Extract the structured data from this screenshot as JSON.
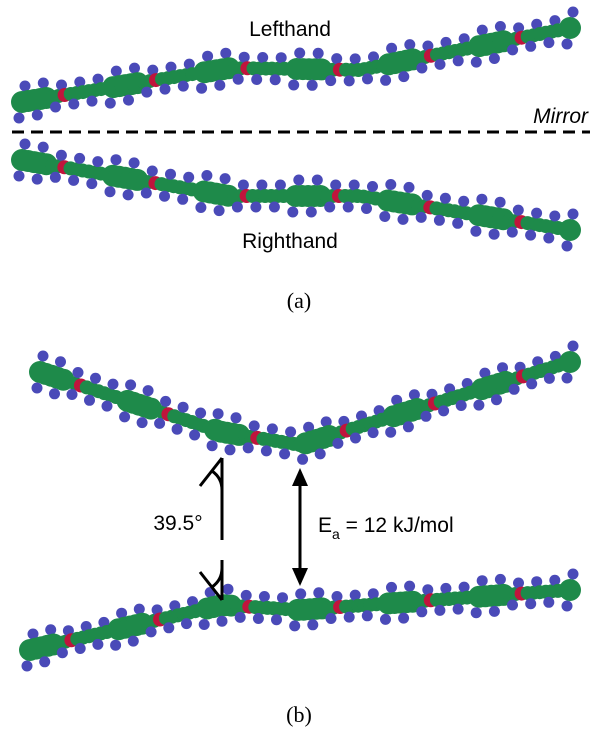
{
  "figure": {
    "panel_a": {
      "top_label": "Lefthand",
      "mirror_label": "Mirror",
      "bottom_label": "Righthand",
      "caption": "(a)"
    },
    "panel_b": {
      "angle_label": "39.5°",
      "energy_symbol": "E",
      "energy_subscript": "a",
      "energy_value": " = 12 kJ/mol",
      "caption": "(b)"
    }
  }
}
